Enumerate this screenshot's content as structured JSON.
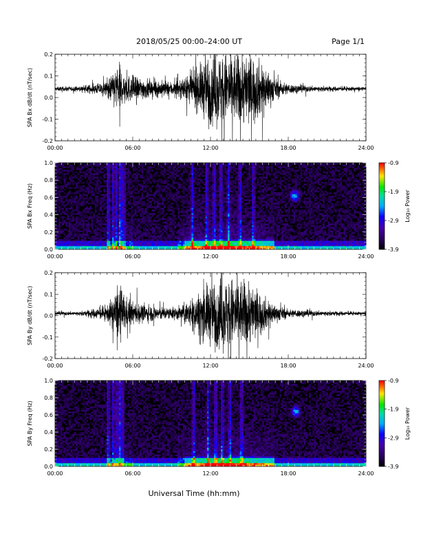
{
  "header": {
    "title": "2018/05/25  00:00–24:00 UT",
    "page": "Page 1/1"
  },
  "x_axis": {
    "label": "Universal Time (hh:mm)",
    "range_hours": [
      0,
      24
    ],
    "ticks": [
      "00:00",
      "06:00",
      "12:00",
      "18:00",
      "24:00"
    ]
  },
  "colorbar": {
    "label": "Log₁₀ Power",
    "range": [
      -3.9,
      -0.9
    ],
    "ticks": [
      "-0.9",
      "-1.9",
      "-2.9",
      "-3.9"
    ]
  },
  "chart_data": [
    {
      "type": "line",
      "ylabel": "SPA Bx dB/dt (nT/sec)",
      "x_unit": "hours UT",
      "ylim": [
        -0.2,
        0.2
      ],
      "yticks": [
        "0.2",
        "0.1",
        "0.0",
        "-0.1",
        "-0.2"
      ],
      "offset": 0.04,
      "envelope": {
        "x": [
          0,
          2,
          4,
          4.5,
          5,
          5.5,
          6,
          7,
          8,
          9,
          10,
          11,
          12,
          13,
          14,
          15,
          16,
          17,
          18,
          19,
          20,
          21,
          22,
          23,
          24
        ],
        "amplitude": [
          0.015,
          0.017,
          0.05,
          0.13,
          0.16,
          0.1,
          0.09,
          0.07,
          0.06,
          0.05,
          0.07,
          0.15,
          0.25,
          0.25,
          0.25,
          0.25,
          0.18,
          0.07,
          0.035,
          0.025,
          0.02,
          0.018,
          0.015,
          0.014,
          0.012
        ]
      }
    },
    {
      "type": "heatmap",
      "ylabel": "SPA Bx Freq (Hz)",
      "x_unit": "hours UT",
      "ylim": [
        0,
        1.0
      ],
      "yticks": [
        "1.0",
        "0.8",
        "0.6",
        "0.4",
        "0.2",
        "0.0"
      ],
      "value_range": [
        -3.9,
        -0.9
      ],
      "vertical_bursts_hours": [
        4.1,
        4.5,
        4.7,
        5.0,
        5.1,
        5.3,
        10.6,
        11.7,
        12.3,
        12.8,
        13.4,
        14.3,
        15.3
      ],
      "low_freq_band_hours": [
        10,
        17
      ],
      "spot": {
        "hour": 18.5,
        "freq": 0.62
      }
    },
    {
      "type": "line",
      "ylabel": "SPA By dB/dt (nT/sec)",
      "x_unit": "hours UT",
      "ylim": [
        -0.2,
        0.2
      ],
      "yticks": [
        "0.2",
        "0.1",
        "0.0",
        "-0.1",
        "-0.2"
      ],
      "offset": 0.01,
      "envelope": {
        "x": [
          0,
          2,
          4,
          4.5,
          5,
          5.5,
          6,
          7,
          8,
          9,
          10,
          11,
          12,
          13,
          14,
          15,
          16,
          17,
          18,
          19,
          20,
          21,
          22,
          23,
          24
        ],
        "amplitude": [
          0.012,
          0.015,
          0.05,
          0.12,
          0.2,
          0.11,
          0.08,
          0.06,
          0.05,
          0.04,
          0.06,
          0.14,
          0.22,
          0.25,
          0.25,
          0.22,
          0.13,
          0.06,
          0.03,
          0.025,
          0.02,
          0.017,
          0.015,
          0.012,
          0.011
        ]
      }
    },
    {
      "type": "heatmap",
      "ylabel": "SPA By Freq (Hz)",
      "x_unit": "hours UT",
      "ylim": [
        0,
        1.0
      ],
      "yticks": [
        "1.0",
        "0.8",
        "0.6",
        "0.4",
        "0.2",
        "0.0"
      ],
      "value_range": [
        -3.9,
        -0.9
      ],
      "vertical_bursts_hours": [
        4.1,
        4.5,
        4.8,
        5.0,
        5.2,
        10.7,
        11.8,
        12.4,
        12.9,
        13.5,
        14.4
      ],
      "low_freq_band_hours": [
        10,
        17
      ],
      "spot": {
        "hour": 18.6,
        "freq": 0.64
      }
    }
  ]
}
